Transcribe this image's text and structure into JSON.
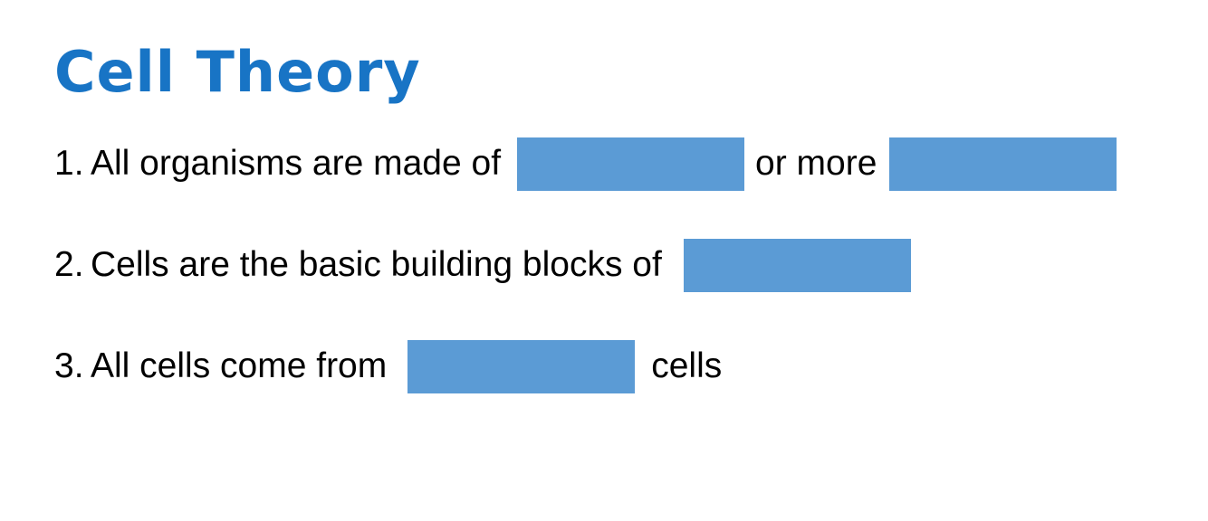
{
  "title": "Cell Theory",
  "items": [
    {
      "number": "1.",
      "segments": [
        "All organisms are made of",
        "or more"
      ]
    },
    {
      "number": "2.",
      "segments": [
        "Cells are the basic building blocks of"
      ]
    },
    {
      "number": "3.",
      "segments": [
        "All cells come from",
        "cells"
      ]
    }
  ],
  "colors": {
    "title": "#1874c5",
    "blank_fill": "#5b9bd5",
    "text": "#000000",
    "background": "#ffffff"
  }
}
